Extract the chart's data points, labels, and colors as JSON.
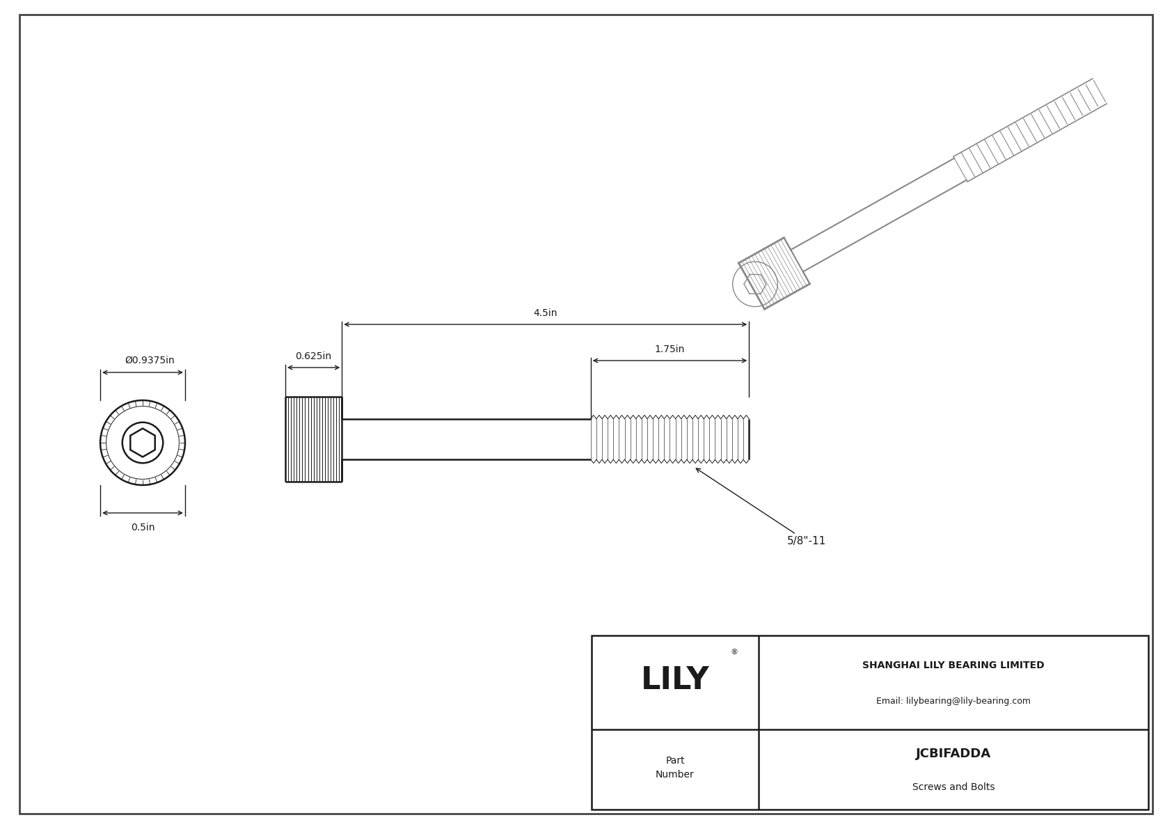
{
  "bg_color": "#ffffff",
  "line_color": "#1a1a1a",
  "dim_color": "#1a1a1a",
  "title_company": "SHANGHAI LILY BEARING LIMITED",
  "title_email": "Email: lilybearing@lily-bearing.com",
  "part_number": "JCBIFADDA",
  "part_category": "Screws and Bolts",
  "dim_diameter": "Ø0.9375in",
  "dim_head_length": "0.625in",
  "dim_total_length": "4.5in",
  "dim_thread_length": "1.75in",
  "dim_thread_pitch": "5/8\"-11",
  "dim_bottom": "0.5in",
  "border_color": "#444444",
  "photo_color": "#888888"
}
